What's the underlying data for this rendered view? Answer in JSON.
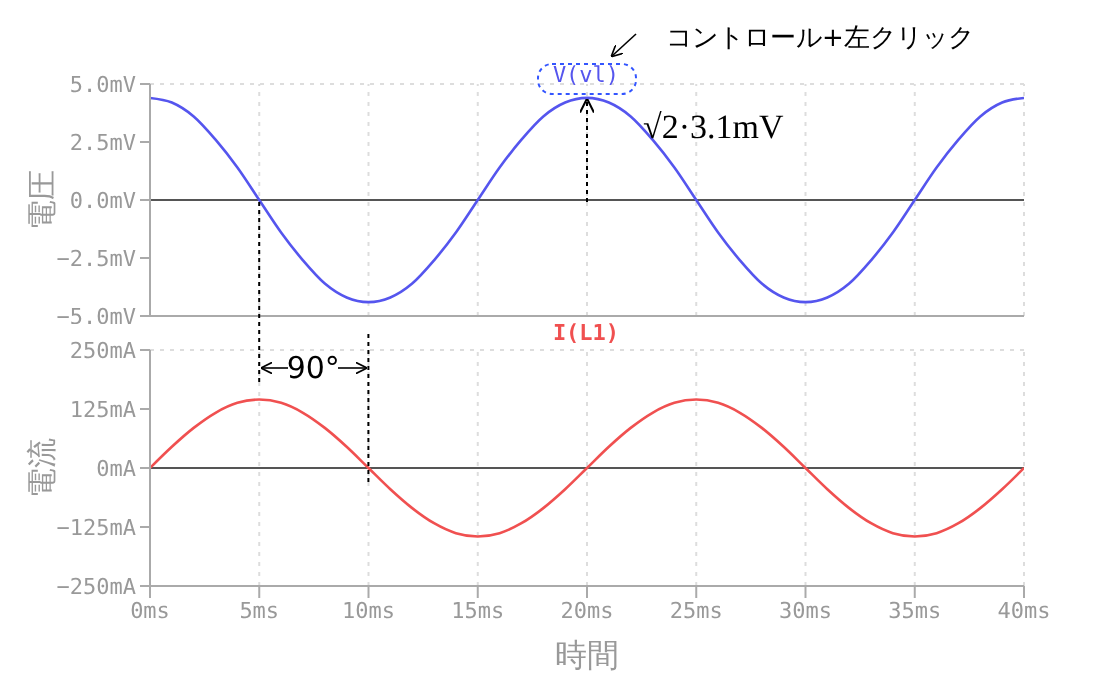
{
  "chart_data": [
    {
      "type": "line",
      "ylabel": "電圧",
      "legend": "top",
      "grid": true,
      "tick_labels": "y",
      "xlim": [
        0,
        40
      ],
      "xticks": [
        0,
        5,
        10,
        15,
        20,
        25,
        30,
        35,
        40
      ],
      "x": [
        0,
        1,
        2,
        3,
        4,
        5,
        6,
        7,
        8,
        9,
        10,
        11,
        12,
        13,
        14,
        15,
        16,
        17,
        18,
        19,
        20,
        21,
        22,
        23,
        24,
        25,
        26,
        27,
        28,
        29,
        30,
        31,
        32,
        33,
        34,
        35,
        36,
        37,
        38,
        39,
        40
      ],
      "ylim": [
        -5,
        5
      ],
      "yticks": [
        {
          "value": 5,
          "label": "5.0mV"
        },
        {
          "value": 2.5,
          "label": "2.5mV"
        },
        {
          "value": 0,
          "label": "0.0mV"
        },
        {
          "value": -2.5,
          "label": "−2.5mV"
        },
        {
          "value": -5,
          "label": "−5.0mV"
        }
      ],
      "ref_lines": [
        {
          "axis": "y",
          "value": 0,
          "color": "#555555"
        }
      ],
      "series": [
        {
          "name": "V(vl)",
          "color": "#5555ee",
          "values": [
            4.4,
            4.2,
            3.6,
            2.6,
            1.4,
            0,
            -1.4,
            -2.6,
            -3.6,
            -4.2,
            -4.4,
            -4.2,
            -3.6,
            -2.6,
            -1.4,
            0,
            1.4,
            2.6,
            3.6,
            4.2,
            4.4,
            4.2,
            3.6,
            2.6,
            1.4,
            0,
            -1.4,
            -2.6,
            -3.6,
            -4.2,
            -4.4,
            -4.2,
            -3.6,
            -2.6,
            -1.4,
            0,
            1.4,
            2.6,
            3.6,
            4.2,
            4.4
          ]
        }
      ],
      "annotations": [
        {
          "text": "√2·3.1mV",
          "x": 20,
          "y": 4.4
        },
        "コントロール+左クリック"
      ]
    },
    {
      "type": "line",
      "ylabel": "電流",
      "xlabel": "時間",
      "legend": "top",
      "grid": true,
      "xlim": [
        0,
        40
      ],
      "xticks": [
        {
          "value": 0,
          "label": "0ms"
        },
        {
          "value": 5,
          "label": "5ms"
        },
        {
          "value": 10,
          "label": "10ms"
        },
        {
          "value": 15,
          "label": "15ms"
        },
        {
          "value": 20,
          "label": "20ms"
        },
        {
          "value": 25,
          "label": "25ms"
        },
        {
          "value": 30,
          "label": "30ms"
        },
        {
          "value": 35,
          "label": "35ms"
        },
        {
          "value": 40,
          "label": "40ms"
        }
      ],
      "x": [
        0,
        1,
        2,
        3,
        4,
        5,
        6,
        7,
        8,
        9,
        10,
        11,
        12,
        13,
        14,
        15,
        16,
        17,
        18,
        19,
        20,
        21,
        22,
        23,
        24,
        25,
        26,
        27,
        28,
        29,
        30,
        31,
        32,
        33,
        34,
        35,
        36,
        37,
        38,
        39,
        40
      ],
      "ylim": [
        -250,
        250
      ],
      "yticks": [
        {
          "value": 250,
          "label": "250mA"
        },
        {
          "value": 125,
          "label": "125mA"
        },
        {
          "value": 0,
          "label": "0mA"
        },
        {
          "value": -125,
          "label": "−125mA"
        },
        {
          "value": -250,
          "label": "−250mA"
        }
      ],
      "ref_lines": [
        {
          "axis": "y",
          "value": 0,
          "color": "#555555"
        }
      ],
      "series": [
        {
          "name": "I(L1)",
          "color": "#f05050",
          "values": [
            0,
            45,
            85,
            117,
            138,
            145,
            138,
            117,
            85,
            45,
            0,
            -45,
            -85,
            -117,
            -138,
            -145,
            -138,
            -117,
            -85,
            -45,
            0,
            45,
            85,
            117,
            138,
            145,
            138,
            117,
            85,
            45,
            0,
            -45,
            -85,
            -117,
            -138,
            -145,
            -138,
            -117,
            -85,
            -45,
            0
          ]
        }
      ],
      "annotations": [
        {
          "text": "90°",
          "x": 5,
          "y": 145
        }
      ]
    }
  ]
}
